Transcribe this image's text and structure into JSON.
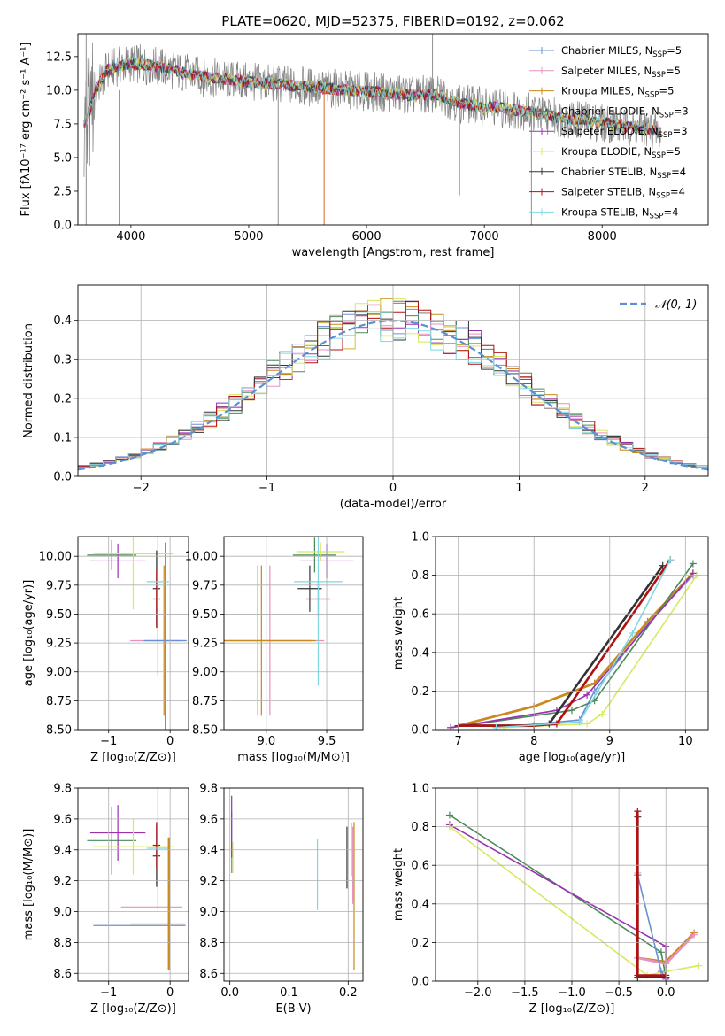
{
  "figure_title": "PLATE=0620, MJD=52375, FIBERID=0192, z=0.062",
  "model_colors": [
    "#6b8fd6",
    "#e890c0",
    "#c88a1a",
    "#4a8a5a",
    "#9b30b0",
    "#d8e860",
    "#333333",
    "#b01010",
    "#7fd8e0"
  ],
  "chart_data": [
    {
      "id": "spectrum",
      "type": "line",
      "title": "PLATE=0620, MJD=52375, FIBERID=0192, z=0.062",
      "xlabel": "wavelength [Angstrom, rest frame]",
      "ylabel": "Flux [fλ10⁻¹⁷ erg cm⁻² s⁻¹ A⁻¹]",
      "xlim": [
        3550,
        8900
      ],
      "ylim": [
        0,
        14.2
      ],
      "xticks": [
        4000,
        5000,
        6000,
        7000,
        8000
      ],
      "yticks": [
        0.0,
        2.5,
        5.0,
        7.5,
        10.0,
        12.5
      ],
      "grid": false,
      "legend_position": "top-right",
      "legend": [
        {
          "label": "Chabrier MILES, N",
          "sub": "SSP",
          "suffix": "=5"
        },
        {
          "label": "Salpeter MILES, N",
          "sub": "SSP",
          "suffix": "=5"
        },
        {
          "label": "Kroupa MILES, N",
          "sub": "SSP",
          "suffix": "=5"
        },
        {
          "label": "Chabrier ELODIE, N",
          "sub": "SSP",
          "suffix": "=3"
        },
        {
          "label": "Salpeter ELODIE, N",
          "sub": "SSP",
          "suffix": "=3"
        },
        {
          "label": "Kroupa ELODIE, N",
          "sub": "SSP",
          "suffix": "=5"
        },
        {
          "label": "Chabrier STELIB, N",
          "sub": "SSP",
          "suffix": "=4"
        },
        {
          "label": "Salpeter STELIB, N",
          "sub": "SSP",
          "suffix": "=4"
        },
        {
          "label": "Kroupa STELIB, N",
          "sub": "SSP",
          "suffix": "=4"
        }
      ],
      "model_continuum": [
        [
          3600,
          7.5
        ],
        [
          3650,
          8.5
        ],
        [
          3700,
          10.0
        ],
        [
          3800,
          11.5
        ],
        [
          3900,
          11.8
        ],
        [
          4000,
          12.0
        ],
        [
          4200,
          11.8
        ],
        [
          4400,
          11.4
        ],
        [
          4600,
          11.0
        ],
        [
          4800,
          10.8
        ],
        [
          5000,
          10.6
        ],
        [
          5200,
          10.5
        ],
        [
          5400,
          10.3
        ],
        [
          5600,
          10.2
        ],
        [
          5800,
          10.0
        ],
        [
          6000,
          9.9
        ],
        [
          6200,
          9.8
        ],
        [
          6400,
          9.6
        ],
        [
          6600,
          9.7
        ],
        [
          6800,
          9.0
        ],
        [
          7000,
          8.8
        ],
        [
          7200,
          8.6
        ],
        [
          7400,
          8.4
        ],
        [
          7600,
          8.0
        ],
        [
          7800,
          7.8
        ],
        [
          8000,
          7.6
        ],
        [
          8200,
          7.3
        ],
        [
          8400,
          7.1
        ],
        [
          8500,
          6.8
        ]
      ],
      "observed_color": "#808080"
    },
    {
      "id": "residuals",
      "type": "line",
      "xlabel": "(data-model)/error",
      "ylabel": "Normed distribution",
      "xlim": [
        -2.5,
        2.5
      ],
      "ylim": [
        0,
        0.49
      ],
      "xticks": [
        -2,
        -1,
        0,
        1,
        2
      ],
      "yticks": [
        0.0,
        0.1,
        0.2,
        0.3,
        0.4
      ],
      "grid": true,
      "legend_position": "top-right",
      "legend": [
        {
          "label": "𝒩(0, 1)"
        }
      ],
      "normal_curve": {
        "mean": 0,
        "sigma": 1
      }
    },
    {
      "id": "age-vs-Z",
      "type": "scatter",
      "xlabel": "Z [log₁₀(Z/Z⊙)]",
      "ylabel": "age  [log₁₀(age/yr)]",
      "xlim": [
        -1.5,
        0.3
      ],
      "ylim": [
        8.5,
        10.17
      ],
      "xticks": [
        -1,
        0
      ],
      "yticks": [
        8.5,
        8.75,
        9.0,
        9.25,
        9.5,
        9.75,
        10.0
      ],
      "grid": true,
      "points": [
        {
          "x": -0.1,
          "y": 9.27,
          "xerr": 0.3,
          "yerr": 0.65,
          "c": 2
        },
        {
          "x": -0.2,
          "y": 9.27,
          "xerr": 0.45,
          "yerr": 0.3,
          "c": 1
        },
        {
          "x": -0.08,
          "y": 9.27,
          "xerr": 0.35,
          "yerr": 0.85,
          "c": 0
        },
        {
          "x": -0.95,
          "y": 10.01,
          "xerr": 0.4,
          "yerr": 0.13,
          "c": 3
        },
        {
          "x": -0.85,
          "y": 9.96,
          "xerr": 0.45,
          "yerr": 0.15,
          "c": 4
        },
        {
          "x": -0.6,
          "y": 10.02,
          "xerr": 0.65,
          "yerr": 0.48,
          "c": 5
        },
        {
          "x": -0.22,
          "y": 9.72,
          "xerr": 0.06,
          "yerr": 0.33,
          "c": 6
        },
        {
          "x": -0.22,
          "y": 9.63,
          "xerr": 0.06,
          "yerr": 0.25,
          "c": 7
        },
        {
          "x": -0.2,
          "y": 9.78,
          "xerr": 0.18,
          "yerr": 0.5,
          "c": 8
        }
      ]
    },
    {
      "id": "age-vs-mass",
      "type": "scatter",
      "xlabel": "mass [log₁₀(M/M⊙)]",
      "ylabel": "",
      "xlim": [
        8.65,
        9.8
      ],
      "ylim": [
        8.5,
        10.17
      ],
      "xticks": [
        9.0,
        9.5
      ],
      "yticks": [
        8.5,
        8.75,
        9.0,
        9.25,
        9.5,
        9.75,
        10.0
      ],
      "grid": true,
      "points": [
        {
          "x": 8.93,
          "y": 9.27,
          "xerr": 0.45,
          "yerr": 0.65,
          "c": 0
        },
        {
          "x": 9.03,
          "y": 9.27,
          "xerr": 0.45,
          "yerr": 0.65,
          "c": 1
        },
        {
          "x": 8.96,
          "y": 9.27,
          "xerr": 0.45,
          "yerr": 0.65,
          "c": 2
        },
        {
          "x": 9.4,
          "y": 10.01,
          "xerr": 0.18,
          "yerr": 0.15,
          "c": 3
        },
        {
          "x": 9.5,
          "y": 9.96,
          "xerr": 0.22,
          "yerr": 0.15,
          "c": 4
        },
        {
          "x": 9.45,
          "y": 10.04,
          "xerr": 0.2,
          "yerr": 0.08,
          "c": 5
        },
        {
          "x": 9.36,
          "y": 9.72,
          "xerr": 0.1,
          "yerr": 0.2,
          "c": 6
        },
        {
          "x": 9.43,
          "y": 9.63,
          "xerr": 0.1,
          "yerr": 0.15,
          "c": 7
        },
        {
          "x": 9.43,
          "y": 9.78,
          "xerr": 0.2,
          "yerr": 0.9,
          "c": 8
        }
      ]
    },
    {
      "id": "mass-weight-vs-age",
      "type": "line",
      "xlabel": "age  [log₁₀(age/yr)]",
      "ylabel": "mass weight",
      "xlim": [
        6.7,
        10.3
      ],
      "ylim": [
        0,
        1.0
      ],
      "xticks": [
        7,
        8,
        9,
        10
      ],
      "yticks": [
        0.0,
        0.2,
        0.4,
        0.6,
        0.8,
        1.0
      ],
      "grid": true,
      "series": [
        {
          "c": 0,
          "x": [
            7.5,
            8.6,
            8.8,
            9.5,
            10.1
          ],
          "y": [
            0.01,
            0.05,
            0.2,
            0.55,
            0.8
          ]
        },
        {
          "c": 1,
          "x": [
            7.0,
            8.0,
            8.8,
            9.5,
            10.1
          ],
          "y": [
            0.02,
            0.12,
            0.24,
            0.56,
            0.81
          ]
        },
        {
          "c": 2,
          "x": [
            7.0,
            8.0,
            8.8,
            9.5,
            10.1
          ],
          "y": [
            0.02,
            0.12,
            0.24,
            0.56,
            0.81
          ]
        },
        {
          "c": 3,
          "x": [
            6.9,
            8.5,
            8.8,
            10.1
          ],
          "y": [
            0.01,
            0.1,
            0.15,
            0.86
          ]
        },
        {
          "c": 4,
          "x": [
            6.9,
            8.3,
            8.7,
            10.1
          ],
          "y": [
            0.01,
            0.1,
            0.18,
            0.81
          ]
        },
        {
          "c": 5,
          "x": [
            7.6,
            8.7,
            8.9,
            10.15
          ],
          "y": [
            0.01,
            0.03,
            0.08,
            0.8
          ]
        },
        {
          "c": 6,
          "x": [
            7.0,
            8.0,
            8.2,
            9.7
          ],
          "y": [
            0.02,
            0.02,
            0.03,
            0.85
          ]
        },
        {
          "c": 7,
          "x": [
            7.0,
            8.0,
            8.3,
            9.8
          ],
          "y": [
            0.02,
            0.02,
            0.03,
            0.88
          ]
        },
        {
          "c": 8,
          "x": [
            7.5,
            8.6,
            9.3,
            9.8
          ],
          "y": [
            0.01,
            0.04,
            0.5,
            0.88
          ]
        }
      ]
    },
    {
      "id": "mass-vs-Z",
      "type": "scatter",
      "xlabel": "Z [log₁₀(Z/Z⊙)]",
      "ylabel": "mass [log₁₀(M/M⊙)]",
      "xlim": [
        -1.5,
        0.3
      ],
      "ylim": [
        8.55,
        9.8
      ],
      "xticks": [
        -1,
        0
      ],
      "yticks": [
        8.6,
        8.8,
        9.0,
        9.2,
        9.4,
        9.6,
        9.8
      ],
      "grid": true,
      "points": [
        {
          "x": -0.5,
          "y": 8.91,
          "xerr": 0.75,
          "yerr": 0.0,
          "c": 0
        },
        {
          "x": -0.3,
          "y": 9.03,
          "xerr": 0.5,
          "yerr": 0.0,
          "c": 1
        },
        {
          "x": -0.2,
          "y": 8.92,
          "xerr": 0.45,
          "yerr": 0.0,
          "c": 2
        },
        {
          "x": -0.95,
          "y": 9.46,
          "xerr": 0.4,
          "yerr": 0.22,
          "c": 3
        },
        {
          "x": -0.85,
          "y": 9.51,
          "xerr": 0.45,
          "yerr": 0.18,
          "c": 4
        },
        {
          "x": -0.6,
          "y": 9.42,
          "xerr": 0.65,
          "yerr": 0.18,
          "c": 5
        },
        {
          "x": -0.22,
          "y": 9.36,
          "xerr": 0.06,
          "yerr": 0.2,
          "c": 6
        },
        {
          "x": -0.22,
          "y": 9.43,
          "xerr": 0.06,
          "yerr": 0.15,
          "c": 7
        },
        {
          "x": -0.2,
          "y": 9.41,
          "xerr": 0.18,
          "yerr": 0.4,
          "c": 8
        }
      ],
      "vertical_segments": [
        {
          "x": -0.02,
          "y0": 8.62,
          "y1": 9.48,
          "c": 2
        }
      ]
    },
    {
      "id": "mass-vs-EBV",
      "type": "scatter",
      "xlabel": "E(B-V)",
      "ylabel": "",
      "xlim": [
        -0.01,
        0.225
      ],
      "ylim": [
        8.55,
        9.8
      ],
      "xticks": [
        0.0,
        0.1,
        0.2
      ],
      "yticks": [
        8.6,
        8.8,
        9.0,
        9.2,
        9.4,
        9.6,
        9.8
      ],
      "grid": true,
      "points": [
        {
          "x": 0.003,
          "y": 9.45,
          "yerr": 0.2,
          "c": 0
        },
        {
          "x": 0.003,
          "y": 9.55,
          "yerr": 0.2,
          "c": 4
        },
        {
          "x": 0.005,
          "y": 9.35,
          "yerr": 0.1,
          "c": 5
        },
        {
          "x": 0.148,
          "y": 9.24,
          "yerr": 0.23,
          "c": 8
        },
        {
          "x": 0.198,
          "y": 9.35,
          "yerr": 0.2,
          "c": 6
        },
        {
          "x": 0.205,
          "y": 9.4,
          "yerr": 0.17,
          "c": 7
        },
        {
          "x": 0.21,
          "y": 9.1,
          "yerr": 0.48,
          "c": 2
        },
        {
          "x": 0.208,
          "y": 9.3,
          "yerr": 0.25,
          "c": 1
        }
      ]
    },
    {
      "id": "mass-weight-vs-Z",
      "type": "line",
      "xlabel": "Z [log₁₀(Z/Z⊙)]",
      "ylabel": "mass weight",
      "xlim": [
        -2.45,
        0.45
      ],
      "ylim": [
        0,
        1.0
      ],
      "xticks": [
        -2.0,
        -1.5,
        -1.0,
        -0.5,
        0.0
      ],
      "yticks": [
        0.0,
        0.2,
        0.4,
        0.6,
        0.8,
        1.0
      ],
      "grid": true,
      "series": [
        {
          "c": 3,
          "x": [
            -2.3,
            -0.05,
            0.0
          ],
          "y": [
            0.86,
            0.15,
            0.02
          ]
        },
        {
          "c": 4,
          "x": [
            -2.3,
            0.0,
            0.0
          ],
          "y": [
            0.81,
            0.18,
            0.01
          ]
        },
        {
          "c": 5,
          "x": [
            -2.3,
            -0.2,
            0.0,
            0.35
          ],
          "y": [
            0.8,
            0.03,
            0.05,
            0.08
          ]
        },
        {
          "c": 2,
          "x": [
            -0.3,
            -0.3,
            0.0,
            0.3
          ],
          "y": [
            0.55,
            0.12,
            0.1,
            0.25
          ]
        },
        {
          "c": 1,
          "x": [
            -0.3,
            -0.3,
            0.0,
            0.3
          ],
          "y": [
            0.56,
            0.12,
            0.09,
            0.24
          ]
        },
        {
          "c": 0,
          "x": [
            -0.3,
            -0.05,
            0.0
          ],
          "y": [
            0.55,
            0.05,
            0.02
          ]
        },
        {
          "c": 8,
          "x": [
            -0.3,
            -0.3,
            0.0
          ],
          "y": [
            0.88,
            0.02,
            0.02
          ]
        },
        {
          "c": 6,
          "x": [
            -0.3,
            -0.3,
            0.0
          ],
          "y": [
            0.85,
            0.02,
            0.02
          ]
        },
        {
          "c": 7,
          "x": [
            -0.3,
            -0.3,
            0.0
          ],
          "y": [
            0.88,
            0.03,
            0.03
          ]
        }
      ]
    }
  ]
}
